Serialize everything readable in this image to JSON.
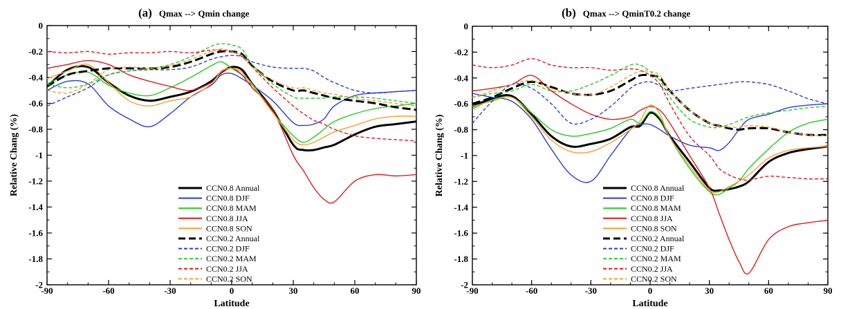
{
  "chart_data": [
    {
      "type": "line",
      "panel_label": "(a)",
      "title": "Qmax --> Qmin change",
      "xlabel": "Latitude",
      "ylabel": "Relative Chang (%)",
      "xlim": [
        -90,
        90
      ],
      "ylim": [
        -2,
        0
      ],
      "xticks": [
        -90,
        -60,
        -30,
        0,
        30,
        60,
        90
      ],
      "yticks": [
        0,
        -0.2,
        -0.4,
        -0.6,
        -0.8,
        -1,
        -1.2,
        -1.4,
        -1.6,
        -1.8,
        -2
      ],
      "grid": false,
      "legend_position": "bottom-center",
      "x": [
        -90,
        -80,
        -70,
        -60,
        -50,
        -40,
        -30,
        -20,
        -10,
        -5,
        0,
        5,
        10,
        20,
        30,
        35,
        40,
        45,
        50,
        60,
        70,
        80,
        90
      ],
      "series": [
        {
          "name": "CCN0.8 Annual",
          "color": "#000000",
          "dash": "solid",
          "width": 3,
          "values": [
            -0.47,
            -0.34,
            -0.32,
            -0.44,
            -0.54,
            -0.58,
            -0.55,
            -0.51,
            -0.43,
            -0.36,
            -0.32,
            -0.34,
            -0.45,
            -0.65,
            -0.92,
            -0.96,
            -0.96,
            -0.94,
            -0.92,
            -0.84,
            -0.78,
            -0.76,
            -0.74
          ]
        },
        {
          "name": "CCN0.8 DJF",
          "color": "#2a3bd6",
          "dash": "solid",
          "width": 1.4,
          "values": [
            -0.5,
            -0.43,
            -0.45,
            -0.62,
            -0.72,
            -0.78,
            -0.68,
            -0.55,
            -0.46,
            -0.38,
            -0.37,
            -0.41,
            -0.46,
            -0.58,
            -0.75,
            -0.77,
            -0.76,
            -0.72,
            -0.62,
            -0.54,
            -0.52,
            -0.51,
            -0.5
          ]
        },
        {
          "name": "CCN0.8 MAM",
          "color": "#22cc22",
          "dash": "solid",
          "width": 1.4,
          "values": [
            -0.45,
            -0.38,
            -0.36,
            -0.46,
            -0.52,
            -0.54,
            -0.48,
            -0.4,
            -0.31,
            -0.28,
            -0.33,
            -0.38,
            -0.45,
            -0.67,
            -0.85,
            -0.9,
            -0.86,
            -0.8,
            -0.74,
            -0.68,
            -0.64,
            -0.62,
            -0.6
          ]
        },
        {
          "name": "CCN0.8 JJA",
          "color": "#e01919",
          "dash": "solid",
          "width": 1.4,
          "values": [
            -0.33,
            -0.3,
            -0.27,
            -0.3,
            -0.38,
            -0.43,
            -0.47,
            -0.5,
            -0.44,
            -0.36,
            -0.33,
            -0.38,
            -0.48,
            -0.65,
            -1.0,
            -1.12,
            -1.25,
            -1.34,
            -1.36,
            -1.2,
            -1.15,
            -1.16,
            -1.15
          ]
        },
        {
          "name": "CCN0.8 SON",
          "color": "#f5a030",
          "dash": "solid",
          "width": 1.4,
          "values": [
            -0.41,
            -0.35,
            -0.3,
            -0.44,
            -0.58,
            -0.62,
            -0.58,
            -0.55,
            -0.45,
            -0.35,
            -0.33,
            -0.36,
            -0.46,
            -0.67,
            -0.88,
            -0.92,
            -0.9,
            -0.86,
            -0.82,
            -0.77,
            -0.72,
            -0.7,
            -0.7
          ]
        },
        {
          "name": "CCN0.2 Annual",
          "color": "#000000",
          "dash": "dash",
          "width": 3,
          "values": [
            -0.47,
            -0.38,
            -0.35,
            -0.33,
            -0.33,
            -0.33,
            -0.32,
            -0.28,
            -0.22,
            -0.2,
            -0.2,
            -0.22,
            -0.31,
            -0.43,
            -0.5,
            -0.5,
            -0.52,
            -0.54,
            -0.56,
            -0.58,
            -0.6,
            -0.63,
            -0.65
          ]
        },
        {
          "name": "CCN0.2 DJF",
          "color": "#2a3bd6",
          "dash": "dash",
          "width": 1.4,
          "values": [
            -0.62,
            -0.55,
            -0.48,
            -0.38,
            -0.35,
            -0.34,
            -0.34,
            -0.32,
            -0.26,
            -0.24,
            -0.23,
            -0.24,
            -0.28,
            -0.32,
            -0.33,
            -0.33,
            -0.35,
            -0.4,
            -0.44,
            -0.5,
            -0.52,
            -0.51,
            -0.5
          ]
        },
        {
          "name": "CCN0.2 MAM",
          "color": "#22cc22",
          "dash": "dash",
          "width": 1.4,
          "values": [
            -0.45,
            -0.48,
            -0.45,
            -0.38,
            -0.35,
            -0.33,
            -0.3,
            -0.24,
            -0.16,
            -0.14,
            -0.15,
            -0.18,
            -0.3,
            -0.45,
            -0.55,
            -0.56,
            -0.56,
            -0.56,
            -0.55,
            -0.55,
            -0.56,
            -0.58,
            -0.6
          ]
        },
        {
          "name": "CCN0.2 JJA",
          "color": "#e01919",
          "dash": "dash",
          "width": 1.4,
          "values": [
            -0.2,
            -0.21,
            -0.2,
            -0.22,
            -0.21,
            -0.21,
            -0.2,
            -0.21,
            -0.19,
            -0.19,
            -0.2,
            -0.24,
            -0.32,
            -0.48,
            -0.62,
            -0.68,
            -0.73,
            -0.76,
            -0.8,
            -0.85,
            -0.87,
            -0.88,
            -0.89
          ]
        },
        {
          "name": "CCN0.2 SON",
          "color": "#f5a030",
          "dash": "dash",
          "width": 1.4,
          "values": [
            -0.5,
            -0.52,
            -0.45,
            -0.34,
            -0.32,
            -0.33,
            -0.31,
            -0.26,
            -0.2,
            -0.18,
            -0.2,
            -0.23,
            -0.32,
            -0.42,
            -0.48,
            -0.48,
            -0.5,
            -0.52,
            -0.53,
            -0.56,
            -0.58,
            -0.6,
            -0.62
          ]
        }
      ]
    },
    {
      "type": "line",
      "panel_label": "(b)",
      "title": "Qmax --> QminT0.2 change",
      "xlabel": "Latitude",
      "ylabel": "Relative Chang (%)",
      "xlim": [
        -90,
        90
      ],
      "ylim": [
        -2,
        0
      ],
      "xticks": [
        -90,
        -60,
        -30,
        0,
        30,
        60,
        90
      ],
      "yticks": [
        0,
        -0.2,
        -0.4,
        -0.6,
        -0.8,
        -1,
        -1.2,
        -1.4,
        -1.6,
        -1.8,
        -2
      ],
      "grid": false,
      "legend_position": "bottom-center",
      "x": [
        -90,
        -80,
        -70,
        -60,
        -50,
        -40,
        -30,
        -20,
        -10,
        -5,
        0,
        5,
        10,
        20,
        30,
        35,
        40,
        45,
        50,
        60,
        70,
        80,
        90
      ],
      "series": [
        {
          "name": "CCN0.8 Annual",
          "color": "#000000",
          "dash": "solid",
          "width": 3,
          "values": [
            -0.62,
            -0.56,
            -0.54,
            -0.68,
            -0.85,
            -0.93,
            -0.91,
            -0.87,
            -0.78,
            -0.77,
            -0.67,
            -0.72,
            -0.85,
            -1.05,
            -1.25,
            -1.27,
            -1.26,
            -1.24,
            -1.2,
            -1.05,
            -0.98,
            -0.95,
            -0.93
          ]
        },
        {
          "name": "CCN0.8 DJF",
          "color": "#2a3bd6",
          "dash": "solid",
          "width": 1.4,
          "values": [
            -0.52,
            -0.55,
            -0.58,
            -0.72,
            -0.95,
            -1.15,
            -1.2,
            -1.0,
            -0.8,
            -0.76,
            -0.76,
            -0.8,
            -0.85,
            -0.92,
            -0.94,
            -0.96,
            -0.9,
            -0.8,
            -0.72,
            -0.68,
            -0.63,
            -0.61,
            -0.6
          ]
        },
        {
          "name": "CCN0.8 MAM",
          "color": "#22cc22",
          "dash": "solid",
          "width": 1.4,
          "values": [
            -0.64,
            -0.57,
            -0.55,
            -0.67,
            -0.8,
            -0.85,
            -0.83,
            -0.79,
            -0.72,
            -0.75,
            -0.66,
            -0.71,
            -0.86,
            -1.1,
            -1.28,
            -1.3,
            -1.25,
            -1.2,
            -1.1,
            -0.95,
            -0.82,
            -0.75,
            -0.72
          ]
        },
        {
          "name": "CCN0.8 JJA",
          "color": "#e01919",
          "dash": "solid",
          "width": 1.4,
          "values": [
            -0.5,
            -0.48,
            -0.45,
            -0.38,
            -0.5,
            -0.6,
            -0.68,
            -0.72,
            -0.7,
            -0.65,
            -0.62,
            -0.65,
            -0.75,
            -1.0,
            -1.25,
            -1.45,
            -1.65,
            -1.82,
            -1.91,
            -1.65,
            -1.55,
            -1.52,
            -1.5
          ]
        },
        {
          "name": "CCN0.8 SON",
          "color": "#f5a030",
          "dash": "solid",
          "width": 1.4,
          "values": [
            -0.62,
            -0.58,
            -0.55,
            -0.7,
            -0.88,
            -0.97,
            -0.97,
            -0.9,
            -0.8,
            -0.73,
            -0.61,
            -0.68,
            -0.86,
            -1.08,
            -1.27,
            -1.28,
            -1.24,
            -1.2,
            -1.15,
            -1.02,
            -0.96,
            -0.94,
            -0.93
          ]
        },
        {
          "name": "CCN0.2 Annual",
          "color": "#000000",
          "dash": "dash",
          "width": 3,
          "values": [
            -0.6,
            -0.55,
            -0.48,
            -0.43,
            -0.47,
            -0.52,
            -0.53,
            -0.5,
            -0.42,
            -0.38,
            -0.38,
            -0.4,
            -0.5,
            -0.65,
            -0.75,
            -0.77,
            -0.79,
            -0.8,
            -0.79,
            -0.79,
            -0.82,
            -0.84,
            -0.84
          ]
        },
        {
          "name": "CCN0.2 DJF",
          "color": "#2a3bd6",
          "dash": "dash",
          "width": 1.4,
          "values": [
            -0.75,
            -0.58,
            -0.45,
            -0.48,
            -0.6,
            -0.75,
            -0.72,
            -0.62,
            -0.48,
            -0.44,
            -0.43,
            -0.46,
            -0.5,
            -0.48,
            -0.46,
            -0.45,
            -0.44,
            -0.43,
            -0.43,
            -0.45,
            -0.5,
            -0.56,
            -0.6
          ]
        },
        {
          "name": "CCN0.2 MAM",
          "color": "#22cc22",
          "dash": "dash",
          "width": 1.4,
          "values": [
            -0.55,
            -0.52,
            -0.5,
            -0.45,
            -0.5,
            -0.5,
            -0.45,
            -0.38,
            -0.3,
            -0.3,
            -0.35,
            -0.42,
            -0.55,
            -0.72,
            -0.78,
            -0.78,
            -0.76,
            -0.73,
            -0.7,
            -0.67,
            -0.65,
            -0.63,
            -0.62
          ]
        },
        {
          "name": "CCN0.2 JJA",
          "color": "#e01919",
          "dash": "dash",
          "width": 1.4,
          "values": [
            -0.3,
            -0.32,
            -0.3,
            -0.25,
            -0.3,
            -0.32,
            -0.32,
            -0.34,
            -0.33,
            -0.34,
            -0.38,
            -0.45,
            -0.6,
            -0.85,
            -1.0,
            -1.1,
            -1.15,
            -1.18,
            -1.19,
            -1.16,
            -1.17,
            -1.18,
            -1.18
          ]
        },
        {
          "name": "CCN0.2 SON",
          "color": "#f5a030",
          "dash": "dash",
          "width": 1.4,
          "values": [
            -0.55,
            -0.5,
            -0.45,
            -0.42,
            -0.48,
            -0.52,
            -0.53,
            -0.47,
            -0.38,
            -0.35,
            -0.35,
            -0.38,
            -0.5,
            -0.65,
            -0.75,
            -0.77,
            -0.78,
            -0.78,
            -0.77,
            -0.78,
            -0.82,
            -0.84,
            -0.85
          ]
        }
      ]
    }
  ]
}
